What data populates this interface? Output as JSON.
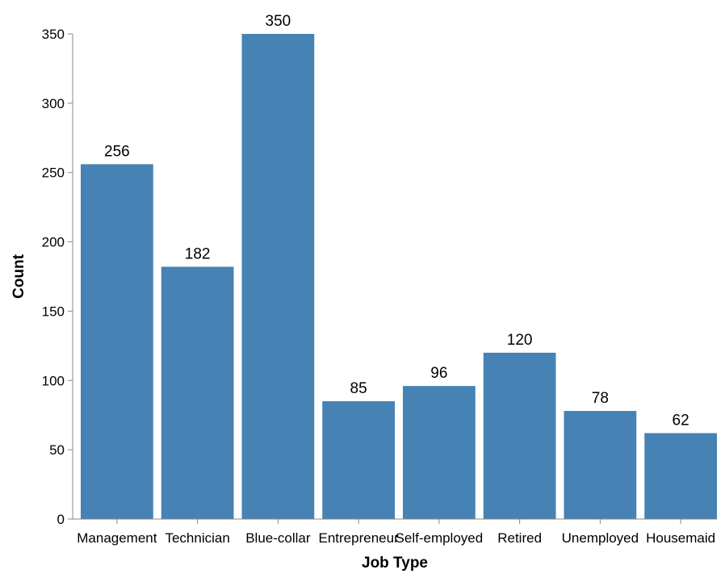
{
  "chart_data": {
    "type": "bar",
    "title": "",
    "xlabel": "Job Type",
    "ylabel": "Count",
    "categories": [
      "Management",
      "Technician",
      "Blue-collar",
      "Entrepreneur",
      "Self-employed",
      "Retired",
      "Unemployed",
      "Housemaid"
    ],
    "values": [
      256,
      182,
      350,
      85,
      96,
      120,
      78,
      62
    ],
    "ylim": [
      0,
      360
    ],
    "yticks": [
      "0",
      "50",
      "100",
      "150",
      "200",
      "250",
      "300",
      "350"
    ],
    "bar_color": "#4682b4",
    "grid": false,
    "legend": "none"
  }
}
